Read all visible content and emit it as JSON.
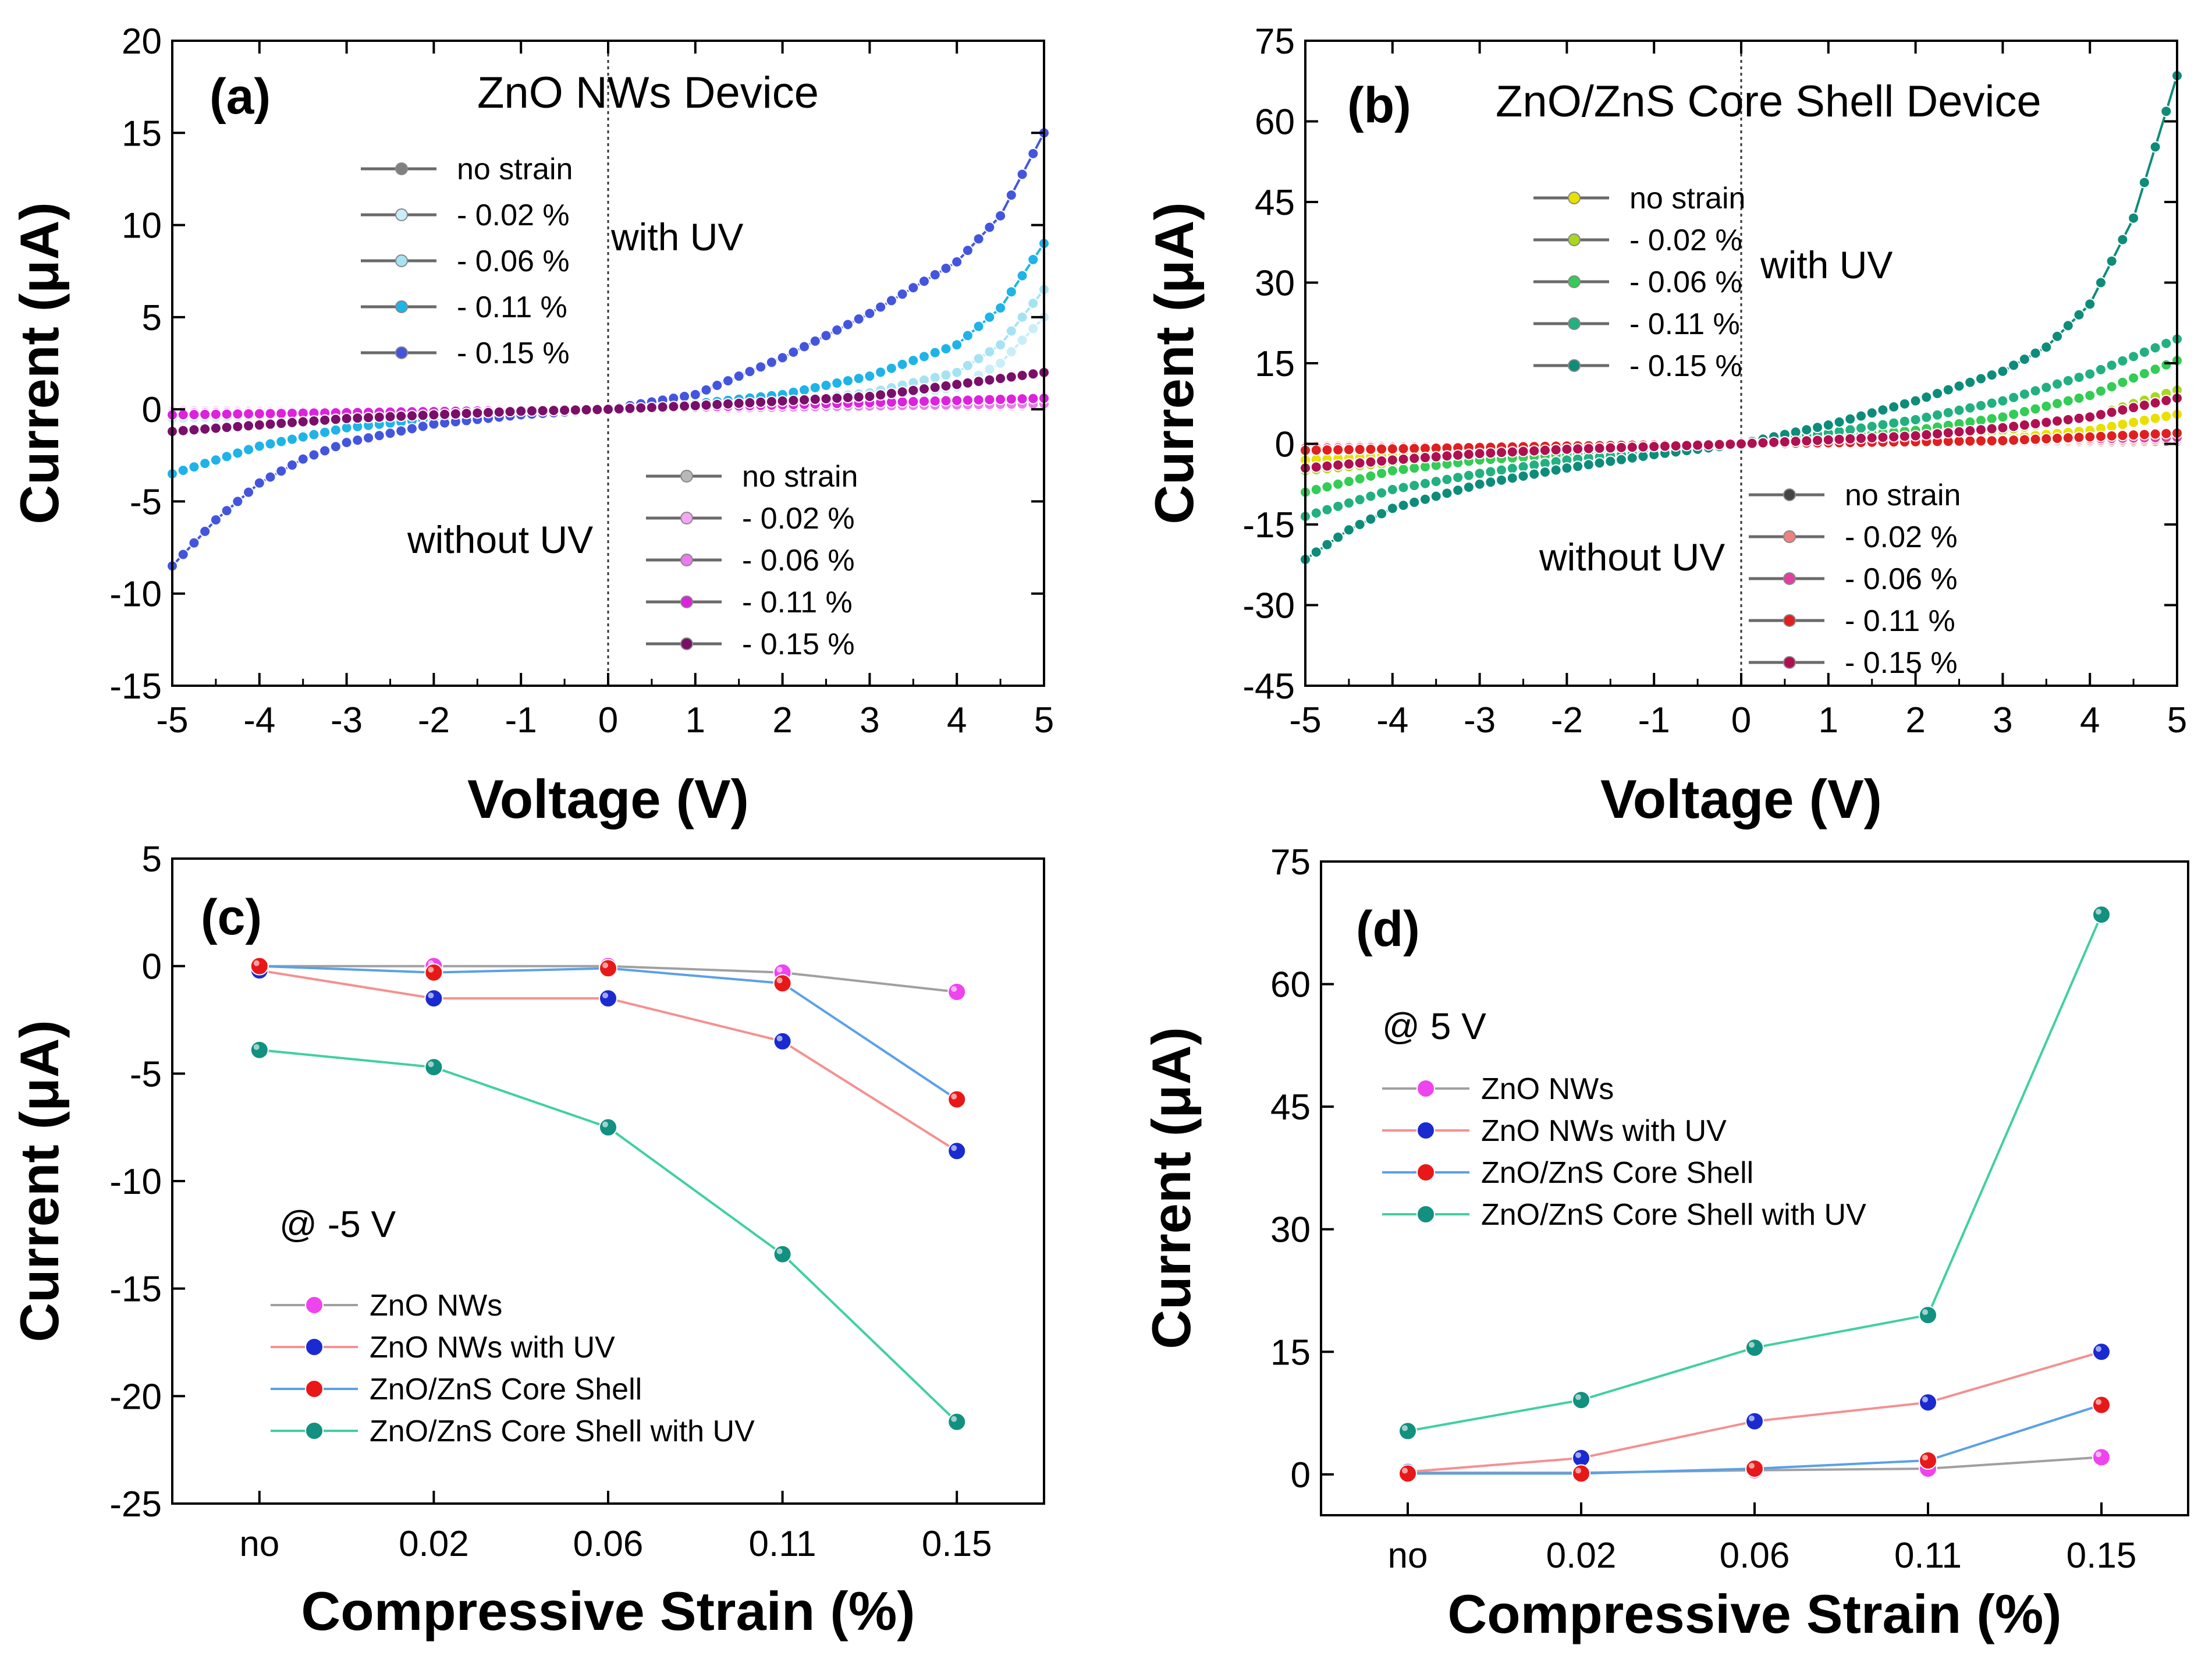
{
  "chart_data": [
    {
      "type": "line",
      "panel_label": "(a)",
      "title": "ZnO NWs Device",
      "xlabel": "Voltage (V)",
      "ylabel": "Current (μA)",
      "xlim": [
        -5,
        5
      ],
      "ylim": [
        -15,
        20
      ],
      "xticks": [
        -5,
        -4,
        -3,
        -2,
        -1,
        0,
        1,
        2,
        3,
        4,
        5
      ],
      "yticks": [
        -15,
        -10,
        -5,
        0,
        5,
        10,
        15,
        20
      ],
      "xtick_labels": [
        "-5",
        "-4",
        "-3",
        "-2",
        "-1",
        "0",
        "1",
        "2",
        "3",
        "4",
        "5"
      ],
      "ytick_labels": [
        "-15",
        "-10",
        "-5",
        "0",
        "5",
        "10",
        "15",
        "20"
      ],
      "annotations": [
        "with UV",
        "without UV"
      ],
      "legends": [
        {
          "title": "with UV",
          "position": "upper-left",
          "entries": [
            "no strain",
            "- 0.02 %",
            "- 0.06 %",
            "- 0.11 %",
            "- 0.15 %"
          ]
        },
        {
          "title": "without UV",
          "position": "lower-right",
          "entries": [
            "no strain",
            "- 0.02 %",
            "- 0.06 %",
            "- 0.11 %",
            "- 0.15 %"
          ]
        }
      ],
      "series": [
        {
          "name": "no strain (with UV)",
          "color": "#808080",
          "points": [
            [
              -5,
              -0.2
            ],
            [
              0,
              0
            ],
            [
              5,
              0.3
            ]
          ]
        },
        {
          "name": "- 0.02 % (with UV)",
          "color": "#c9eef8",
          "points": [
            [
              -5,
              -0.5
            ],
            [
              -3,
              -0.2
            ],
            [
              0,
              0
            ],
            [
              2,
              0.2
            ],
            [
              3,
              0.5
            ],
            [
              4,
              1.2
            ],
            [
              4.5,
              2.5
            ],
            [
              5,
              5.0
            ]
          ]
        },
        {
          "name": "- 0.06 % (with UV)",
          "color": "#a6e3f2",
          "points": [
            [
              -5,
              -1.2
            ],
            [
              -3,
              -0.5
            ],
            [
              0,
              0
            ],
            [
              2,
              0.4
            ],
            [
              3,
              0.9
            ],
            [
              4,
              2.0
            ],
            [
              4.5,
              3.5
            ],
            [
              5,
              6.5
            ]
          ]
        },
        {
          "name": "- 0.11 % (with UV)",
          "color": "#1fb3e8",
          "points": [
            [
              -5,
              -3.5
            ],
            [
              -4,
              -2.0
            ],
            [
              -3,
              -1.0
            ],
            [
              -2,
              -0.5
            ],
            [
              0,
              0
            ],
            [
              1,
              0.3
            ],
            [
              2,
              0.8
            ],
            [
              3,
              1.8
            ],
            [
              4,
              3.5
            ],
            [
              4.5,
              5.5
            ],
            [
              5,
              9.0
            ]
          ]
        },
        {
          "name": "- 0.15 % (with UV)",
          "color": "#4455dd",
          "points": [
            [
              -5,
              -8.5
            ],
            [
              -4.5,
              -6.0
            ],
            [
              -4,
              -4.0
            ],
            [
              -3.5,
              -2.7
            ],
            [
              -3,
              -1.8
            ],
            [
              -2,
              -0.8
            ],
            [
              -1,
              -0.3
            ],
            [
              0,
              0
            ],
            [
              1,
              0.8
            ],
            [
              2,
              2.8
            ],
            [
              3,
              5.2
            ],
            [
              4,
              8.0
            ],
            [
              4.5,
              10.5
            ],
            [
              5,
              15.0
            ]
          ]
        },
        {
          "name": "no strain (without UV)",
          "color": "#b8b8b8",
          "points": [
            [
              -5,
              -0.1
            ],
            [
              0,
              0
            ],
            [
              5,
              0.2
            ]
          ]
        },
        {
          "name": "- 0.02 % (without UV)",
          "color": "#f4a6f4",
          "points": [
            [
              -5,
              -0.1
            ],
            [
              0,
              0
            ],
            [
              5,
              0.2
            ]
          ]
        },
        {
          "name": "- 0.06 % (without UV)",
          "color": "#ea7bea",
          "points": [
            [
              -5,
              -0.2
            ],
            [
              0,
              0
            ],
            [
              5,
              0.3
            ]
          ]
        },
        {
          "name": "- 0.11 % (without UV)",
          "color": "#dd22dd",
          "points": [
            [
              -5,
              -0.3
            ],
            [
              0,
              0
            ],
            [
              5,
              0.6
            ]
          ]
        },
        {
          "name": "- 0.15 % (without UV)",
          "color": "#7a0f6a",
          "points": [
            [
              -5,
              -1.2
            ],
            [
              -3,
              -0.5
            ],
            [
              -1,
              -0.1
            ],
            [
              0,
              0
            ],
            [
              1,
              0.2
            ],
            [
              3,
              0.7
            ],
            [
              5,
              2.0
            ]
          ]
        }
      ]
    },
    {
      "type": "line",
      "panel_label": "(b)",
      "title": "ZnO/ZnS Core Shell Device",
      "xlabel": "Voltage (V)",
      "ylabel": "Current (μA)",
      "xlim": [
        -5,
        5
      ],
      "ylim": [
        -45,
        75
      ],
      "xticks": [
        -5,
        -4,
        -3,
        -2,
        -1,
        0,
        1,
        2,
        3,
        4,
        5
      ],
      "yticks": [
        -45,
        -30,
        -15,
        0,
        15,
        30,
        45,
        60,
        75
      ],
      "xtick_labels": [
        "-5",
        "-4",
        "-3",
        "-2",
        "-1",
        "0",
        "1",
        "2",
        "3",
        "4",
        "5"
      ],
      "ytick_labels": [
        "-45",
        "-30",
        "-15",
        "0",
        "15",
        "30",
        "45",
        "60",
        "75"
      ],
      "annotations": [
        "with UV",
        "without UV"
      ],
      "legends": [
        {
          "title": "with UV",
          "position": "upper-left",
          "entries": [
            "no strain",
            "- 0.02 %",
            "- 0.06 %",
            "- 0.11 %",
            "- 0.15 %"
          ]
        },
        {
          "title": "without UV",
          "position": "lower-right",
          "entries": [
            "no strain",
            "- 0.02 %",
            "- 0.06 %",
            "- 0.11 %",
            "- 0.15 %"
          ]
        }
      ],
      "series": [
        {
          "name": "no strain (with UV)",
          "color": "#e8e000",
          "points": [
            [
              -5,
              -3.0
            ],
            [
              -3,
              -1.5
            ],
            [
              0,
              0
            ],
            [
              3,
              1.0
            ],
            [
              4,
              2.5
            ],
            [
              5,
              5.5
            ]
          ]
        },
        {
          "name": "- 0.02 % (with UV)",
          "color": "#a8d820",
          "points": [
            [
              -5,
              -5.0
            ],
            [
              -3,
              -2.0
            ],
            [
              0,
              0
            ],
            [
              2,
              1.0
            ],
            [
              3,
              2.5
            ],
            [
              4,
              5.0
            ],
            [
              5,
              10.0
            ]
          ]
        },
        {
          "name": "- 0.06 % (with UV)",
          "color": "#33cc55",
          "points": [
            [
              -5,
              -9.0
            ],
            [
              -4,
              -5.0
            ],
            [
              -3,
              -3.0
            ],
            [
              0,
              0
            ],
            [
              2,
              2.5
            ],
            [
              3,
              5.0
            ],
            [
              4,
              9.0
            ],
            [
              5,
              15.5
            ]
          ]
        },
        {
          "name": "- 0.11 % (with UV)",
          "color": "#22b080",
          "points": [
            [
              -5,
              -13.5
            ],
            [
              -4,
              -8.5
            ],
            [
              -3,
              -5.5
            ],
            [
              -2,
              -3.0
            ],
            [
              0,
              0
            ],
            [
              1,
              2.0
            ],
            [
              2,
              4.5
            ],
            [
              3,
              8.0
            ],
            [
              4,
              13.0
            ],
            [
              5,
              19.5
            ]
          ]
        },
        {
          "name": "- 0.15 % (with UV)",
          "color": "#0e8c7a",
          "points": [
            [
              -5,
              -21.5
            ],
            [
              -4.5,
              -16.0
            ],
            [
              -4,
              -12.0
            ],
            [
              -3,
              -7.5
            ],
            [
              -2,
              -4.5
            ],
            [
              -1,
              -2.0
            ],
            [
              0,
              0
            ],
            [
              1,
              3.5
            ],
            [
              2,
              8.0
            ],
            [
              3,
              13.5
            ],
            [
              3.5,
              18.0
            ],
            [
              4,
              26.0
            ],
            [
              4.5,
              42.0
            ],
            [
              5,
              68.5
            ]
          ]
        },
        {
          "name": "no strain (without UV)",
          "color": "#444444",
          "points": [
            [
              -5,
              -0.5
            ],
            [
              0,
              0
            ],
            [
              5,
              0.5
            ]
          ]
        },
        {
          "name": "- 0.02 % (without UV)",
          "color": "#f08080",
          "points": [
            [
              -5,
              -0.5
            ],
            [
              0,
              0
            ],
            [
              5,
              0.8
            ]
          ]
        },
        {
          "name": "- 0.06 % (without UV)",
          "color": "#e040a0",
          "points": [
            [
              -5,
              -0.8
            ],
            [
              0,
              0
            ],
            [
              5,
              1.2
            ]
          ]
        },
        {
          "name": "- 0.11 % (without UV)",
          "color": "#e02020",
          "points": [
            [
              -5,
              -1.2
            ],
            [
              -2,
              -0.4
            ],
            [
              0,
              0
            ],
            [
              3,
              0.6
            ],
            [
              5,
              2.0
            ]
          ]
        },
        {
          "name": "- 0.15 % (without UV)",
          "color": "#b01050",
          "points": [
            [
              -5,
              -4.5
            ],
            [
              -4,
              -3.0
            ],
            [
              -3,
              -1.8
            ],
            [
              -2,
              -1.0
            ],
            [
              0,
              0
            ],
            [
              2,
              1.5
            ],
            [
              3,
              3.0
            ],
            [
              4,
              5.0
            ],
            [
              5,
              8.5
            ]
          ]
        }
      ]
    },
    {
      "type": "line",
      "panel_label": "(c)",
      "title": "",
      "xlabel": "Compressive Strain (%)",
      "ylabel": "Current (μA)",
      "ylim": [
        -25,
        5
      ],
      "yticks": [
        -25,
        -20,
        -15,
        -10,
        -5,
        0,
        5
      ],
      "ytick_labels": [
        "-25",
        "-20",
        "-15",
        "-10",
        "-5",
        "0",
        "5"
      ],
      "categories": [
        "no",
        "0.02",
        "0.06",
        "0.11",
        "0.15"
      ],
      "annotation": "@ -5 V",
      "legend": [
        "ZnO NWs",
        "ZnO NWs with UV",
        "ZnO/ZnS Core Shell",
        "ZnO/ZnS Core Shell with UV"
      ],
      "legend_position": "lower-left",
      "series": [
        {
          "name": "ZnO NWs",
          "line_color": "#a0a0a0",
          "marker_color": "#ee44ee",
          "values": [
            0,
            0,
            0,
            -0.3,
            -1.2
          ]
        },
        {
          "name": "ZnO NWs with UV",
          "line_color": "#f59090",
          "marker_color": "#1a2ad0",
          "values": [
            -0.2,
            -1.5,
            -1.5,
            -3.5,
            -8.6
          ]
        },
        {
          "name": "ZnO/ZnS Core Shell",
          "line_color": "#5aa0e8",
          "marker_color": "#e81818",
          "values": [
            0,
            -0.3,
            -0.1,
            -0.8,
            -6.2
          ]
        },
        {
          "name": "ZnO/ZnS Core Shell with UV",
          "line_color": "#40d0a0",
          "marker_color": "#129080",
          "values": [
            -3.9,
            -4.7,
            -7.5,
            -13.4,
            -21.2
          ]
        }
      ]
    },
    {
      "type": "line",
      "panel_label": "(d)",
      "title": "",
      "xlabel": "Compressive Strain (%)",
      "ylabel": "Current (μA)",
      "ylim": [
        -5,
        75
      ],
      "yticks": [
        0,
        15,
        30,
        45,
        60,
        75
      ],
      "ytick_labels": [
        "0",
        "15",
        "30",
        "45",
        "60",
        "75"
      ],
      "categories": [
        "no",
        "0.02",
        "0.06",
        "0.11",
        "0.15"
      ],
      "annotation": "@ 5 V",
      "legend": [
        "ZnO NWs",
        "ZnO NWs with UV",
        "ZnO/ZnS Core Shell",
        "ZnO/ZnS Core Shell with UV"
      ],
      "legend_position": "upper-left",
      "series": [
        {
          "name": "ZnO NWs",
          "line_color": "#a0a0a0",
          "marker_color": "#ee44ee",
          "values": [
            0.2,
            0.2,
            0.5,
            0.7,
            2.1
          ]
        },
        {
          "name": "ZnO NWs with UV",
          "line_color": "#f59090",
          "marker_color": "#1a2ad0",
          "values": [
            0.3,
            2.0,
            6.5,
            8.8,
            15.0
          ]
        },
        {
          "name": "ZnO/ZnS Core Shell",
          "line_color": "#5aa0e8",
          "marker_color": "#e81818",
          "values": [
            0.1,
            0.1,
            0.7,
            1.7,
            8.5
          ]
        },
        {
          "name": "ZnO/ZnS Core Shell with UV",
          "line_color": "#40d0a0",
          "marker_color": "#129080",
          "values": [
            5.3,
            9.1,
            15.5,
            19.5,
            68.5
          ]
        }
      ]
    }
  ]
}
